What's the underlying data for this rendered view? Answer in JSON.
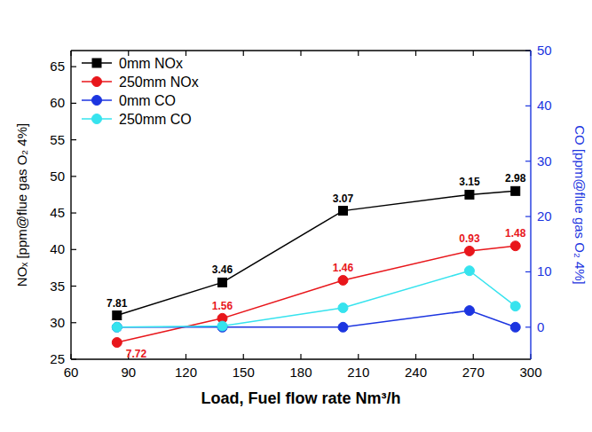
{
  "chart_data": {
    "type": "line",
    "x_label": "Load, Fuel flow rate Nm³/h",
    "y_label": "NOₓ [ppm@flue gas O₂ 4%]",
    "y2_label": "CO [ppm@flue gas O₂ 4%]",
    "x": [
      84,
      139,
      202,
      268,
      292
    ],
    "xlim": [
      60,
      300
    ],
    "xticks": [
      60,
      90,
      120,
      150,
      180,
      210,
      240,
      270,
      300
    ],
    "ylim": [
      25,
      67.2
    ],
    "yticks": [
      25,
      30,
      35,
      40,
      45,
      50,
      55,
      60,
      65
    ],
    "y2lim": [
      -5.8,
      50
    ],
    "y2ticks": [
      0,
      10,
      20,
      30,
      40,
      50
    ],
    "grid": false,
    "legend": "upper left",
    "series": [
      {
        "name": "0mm NOx",
        "color": "#000000",
        "marker": "square",
        "line_style": "solid",
        "values": [
          31.0,
          35.5,
          45.3,
          47.5,
          48.0
        ]
      },
      {
        "name": "250mm NOx",
        "color": "#e8161b",
        "marker": "circle",
        "line_style": "solid",
        "values": [
          27.3,
          30.6,
          35.8,
          39.8,
          40.5
        ]
      },
      {
        "name": "0mm CO",
        "color": "#1c35e0",
        "marker": "circle",
        "line_style": "solid",
        "axis": "y2",
        "values": [
          0.0,
          0.0,
          0.0,
          3.0,
          0.0
        ]
      },
      {
        "name": "250mm CO",
        "color": "#36e3ee",
        "marker": "circle",
        "line_style": "solid",
        "axis": "y2",
        "values": [
          0.0,
          0.2,
          3.5,
          10.2,
          3.8
        ]
      }
    ],
    "annotations": [
      {
        "series": 0,
        "index": 0,
        "text": "7.81"
      },
      {
        "series": 0,
        "index": 1,
        "text": "3.46"
      },
      {
        "series": 0,
        "index": 2,
        "text": "3.07"
      },
      {
        "series": 0,
        "index": 3,
        "text": "3.15"
      },
      {
        "series": 0,
        "index": 4,
        "text": "2.98"
      },
      {
        "series": 1,
        "index": 0,
        "text": "7.72"
      },
      {
        "series": 1,
        "index": 1,
        "text": "1.56"
      },
      {
        "series": 1,
        "index": 2,
        "text": "1.46"
      },
      {
        "series": 1,
        "index": 3,
        "text": "0.93"
      },
      {
        "series": 1,
        "index": 4,
        "text": "1.48"
      }
    ]
  }
}
